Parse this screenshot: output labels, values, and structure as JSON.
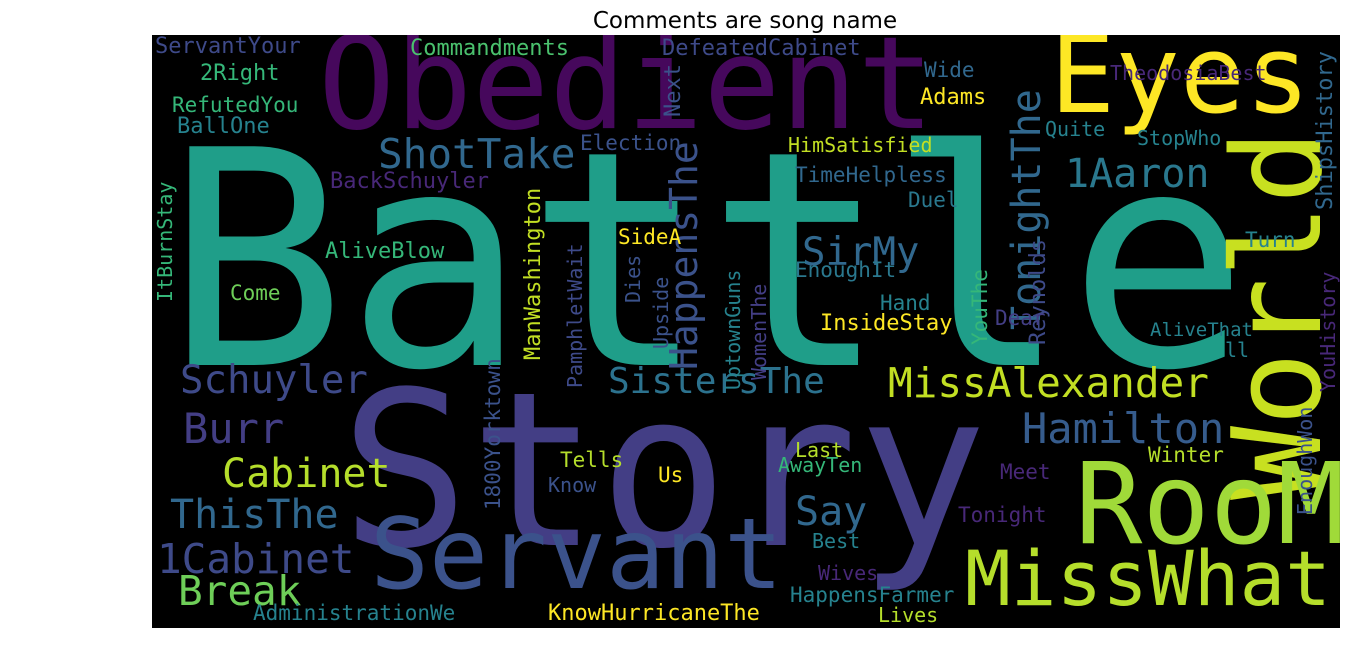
{
  "title": "Comments are song name",
  "wordcloud": {
    "words": [
      {
        "text": "Battle",
        "color": "#1f9e89"
      },
      {
        "text": "Story",
        "color": "#433e85"
      },
      {
        "text": "Obedient",
        "color": "#46085c"
      },
      {
        "text": "Eyes",
        "color": "#fde725"
      },
      {
        "text": "World",
        "color": "#c8e020"
      },
      {
        "text": "RooM",
        "color": "#a0da39"
      },
      {
        "text": "MissWhat",
        "color": "#b5de2b"
      },
      {
        "text": "Servant",
        "color": "#3b528b"
      },
      {
        "text": "MissAlexander",
        "color": "#c2df23"
      },
      {
        "text": "Hamilton",
        "color": "#365c8d"
      },
      {
        "text": "Schuyler",
        "color": "#3e4a89"
      },
      {
        "text": "Burr",
        "color": "#433e85"
      },
      {
        "text": "Cabinet",
        "color": "#b5de2b"
      },
      {
        "text": "ThisThe",
        "color": "#31688e"
      },
      {
        "text": "1Cabinet",
        "color": "#3e4a89"
      },
      {
        "text": "Break",
        "color": "#6ece58"
      },
      {
        "text": "ShotTake",
        "color": "#31688e"
      },
      {
        "text": "SirMy",
        "color": "#31688e"
      },
      {
        "text": "SistersThe",
        "color": "#2c728e"
      },
      {
        "text": "Say",
        "color": "#31688e"
      },
      {
        "text": "1Aaron",
        "color": "#2a788e"
      },
      {
        "text": "HappensThe",
        "color": "#3b528b"
      },
      {
        "text": "TonightThe",
        "color": "#31688e"
      },
      {
        "text": "Commandments",
        "color": "#4ac16d"
      },
      {
        "text": "DefeatedCabinet",
        "color": "#3e4a89"
      },
      {
        "text": "TheodosiaBest",
        "color": "#482878"
      },
      {
        "text": "ServantYour",
        "color": "#3e4a89"
      },
      {
        "text": "2Right",
        "color": "#35b779"
      },
      {
        "text": "RefutedYou",
        "color": "#35b779"
      },
      {
        "text": "BallOne",
        "color": "#26828e"
      },
      {
        "text": "Wide",
        "color": "#31688e"
      },
      {
        "text": "Adams",
        "color": "#fde725"
      },
      {
        "text": "Next",
        "color": "#3b528b"
      },
      {
        "text": "Election",
        "color": "#3b528b"
      },
      {
        "text": "HimSatisfied",
        "color": "#c2df23"
      },
      {
        "text": "Quite",
        "color": "#26828e"
      },
      {
        "text": "StopWho",
        "color": "#26828e"
      },
      {
        "text": "ShipsHistory",
        "color": "#31688e"
      },
      {
        "text": "BackSchuyler",
        "color": "#482878"
      },
      {
        "text": "TimeHelpless",
        "color": "#31688e"
      },
      {
        "text": "Duel",
        "color": "#2a788e"
      },
      {
        "text": "ManWashington",
        "color": "#c2df23"
      },
      {
        "text": "SideA",
        "color": "#fde725"
      },
      {
        "text": "AliveBlow",
        "color": "#35b779"
      },
      {
        "text": "ItBurnStay",
        "color": "#35b779"
      },
      {
        "text": "Come",
        "color": "#6ece58"
      },
      {
        "text": "PamphletWait",
        "color": "#3e4a89"
      },
      {
        "text": "Dies",
        "color": "#3b528b"
      },
      {
        "text": "Upside",
        "color": "#3b528b"
      },
      {
        "text": "UptownGuns",
        "color": "#26828e"
      },
      {
        "text": "WomenThe",
        "color": "#433e85"
      },
      {
        "text": "EnoughIt",
        "color": "#2a788e"
      },
      {
        "text": "YouThe",
        "color": "#35b779"
      },
      {
        "text": "Reynolds",
        "color": "#3e4a89"
      },
      {
        "text": "Turn",
        "color": "#26828e"
      },
      {
        "text": "Hand",
        "color": "#26828e"
      },
      {
        "text": "InsideStay",
        "color": "#fde725"
      },
      {
        "text": "Dear",
        "color": "#433e85"
      },
      {
        "text": "AliveThat",
        "color": "#26828e"
      },
      {
        "text": "ll",
        "color": "#26828e"
      },
      {
        "text": "YouHistory",
        "color": "#482878"
      },
      {
        "text": "EnoughWon",
        "color": "#3b528b"
      },
      {
        "text": "1800Yorktown",
        "color": "#3b528b"
      },
      {
        "text": "Tells",
        "color": "#b5de2b"
      },
      {
        "text": "Us",
        "color": "#fde725"
      },
      {
        "text": "Know",
        "color": "#3b528b"
      },
      {
        "text": "Last",
        "color": "#b5de2b"
      },
      {
        "text": "AwayTen",
        "color": "#35b779"
      },
      {
        "text": "Winter",
        "color": "#b5de2b"
      },
      {
        "text": "Meet",
        "color": "#482878"
      },
      {
        "text": "Tonight",
        "color": "#482878"
      },
      {
        "text": "Best",
        "color": "#26828e"
      },
      {
        "text": "Wives",
        "color": "#482878"
      },
      {
        "text": "HappensFarmer",
        "color": "#26828e"
      },
      {
        "text": "Lives",
        "color": "#b5de2b"
      },
      {
        "text": "AdministrationWe",
        "color": "#26828e"
      },
      {
        "text": "KnowHurricaneThe",
        "color": "#fde725"
      }
    ]
  }
}
